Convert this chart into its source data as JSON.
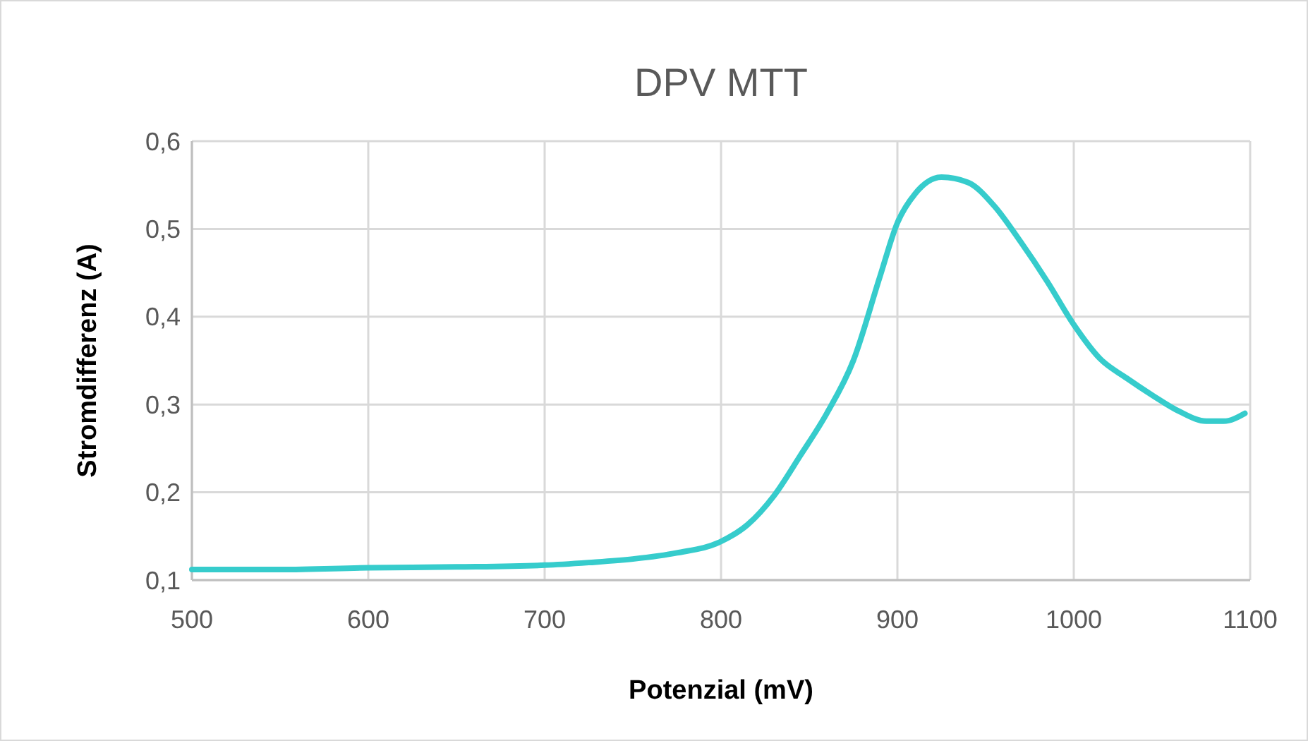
{
  "chart_data": {
    "type": "line",
    "title": "DPV MTT",
    "xlabel": "Potenzial (mV)",
    "ylabel": "Stromdifferenz (A)",
    "xlim": [
      500,
      1100
    ],
    "xticks": [
      500,
      600,
      700,
      800,
      900,
      1000,
      1100
    ],
    "ylim": [
      0.1,
      0.6
    ],
    "yticks": [
      {
        "value": 0.1,
        "label": "0,1"
      },
      {
        "value": 0.2,
        "label": "0,2"
      },
      {
        "value": 0.3,
        "label": "0,3"
      },
      {
        "value": 0.4,
        "label": "0,4"
      },
      {
        "value": 0.5,
        "label": "0,5"
      },
      {
        "value": 0.6,
        "label": "0,6"
      }
    ],
    "grid": true,
    "marker": "none",
    "line_style": "solid",
    "series": [
      {
        "color": "#36cccc",
        "x": [
          500,
          550,
          600,
          650,
          700,
          725,
          750,
          775,
          800,
          815,
          830,
          845,
          860,
          875,
          890,
          900,
          910,
          925,
          940,
          955,
          970,
          985,
          1000,
          1015,
          1030,
          1045,
          1060,
          1075,
          1085,
          1097
        ],
        "values": [
          0.112,
          0.112,
          0.114,
          0.115,
          0.117,
          0.12,
          0.124,
          0.131,
          0.144,
          0.163,
          0.196,
          0.242,
          0.29,
          0.35,
          0.445,
          0.507,
          0.54,
          0.559,
          0.553,
          0.526,
          0.485,
          0.44,
          0.391,
          0.352,
          0.33,
          0.31,
          0.292,
          0.281,
          0.281,
          0.29
        ]
      }
    ]
  }
}
